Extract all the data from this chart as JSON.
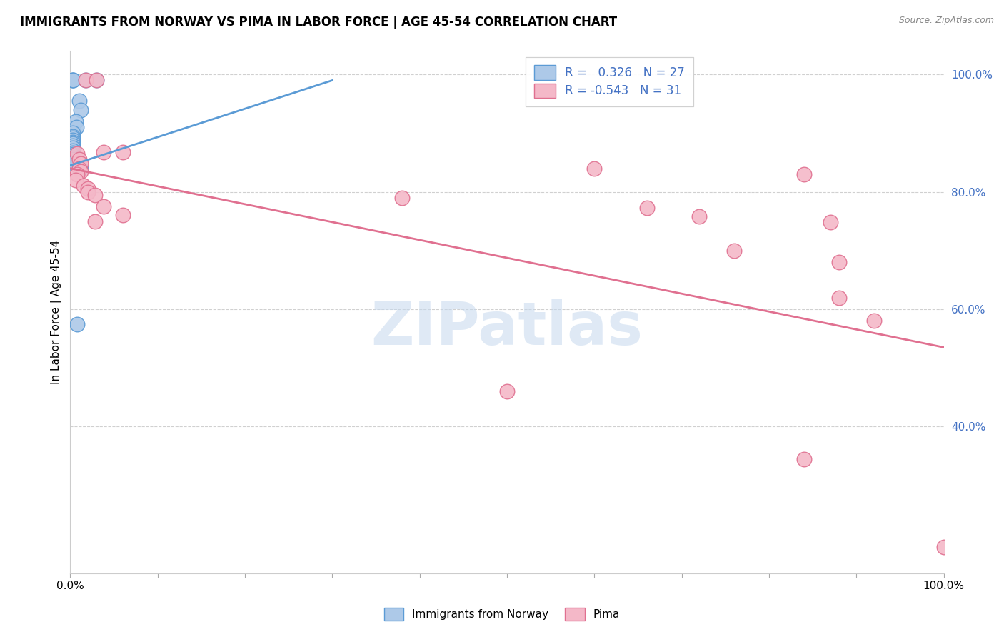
{
  "title": "IMMIGRANTS FROM NORWAY VS PIMA IN LABOR FORCE | AGE 45-54 CORRELATION CHART",
  "source": "Source: ZipAtlas.com",
  "ylabel": "In Labor Force | Age 45-54",
  "norway_R": 0.326,
  "norway_N": 27,
  "pima_R": -0.543,
  "pima_N": 31,
  "norway_color": "#adc9e8",
  "norway_edge_color": "#5b9bd5",
  "pima_color": "#f4b8c8",
  "pima_edge_color": "#e07090",
  "watermark": "ZIPatlas",
  "norway_points": [
    [
      0.003,
      0.99
    ],
    [
      0.003,
      0.99
    ],
    [
      0.003,
      0.99
    ],
    [
      0.018,
      0.99
    ],
    [
      0.03,
      0.99
    ],
    [
      0.01,
      0.955
    ],
    [
      0.012,
      0.94
    ],
    [
      0.006,
      0.92
    ],
    [
      0.007,
      0.91
    ],
    [
      0.003,
      0.9
    ],
    [
      0.003,
      0.895
    ],
    [
      0.003,
      0.892
    ],
    [
      0.003,
      0.888
    ],
    [
      0.003,
      0.885
    ],
    [
      0.003,
      0.882
    ],
    [
      0.003,
      0.878
    ],
    [
      0.003,
      0.875
    ],
    [
      0.003,
      0.87
    ],
    [
      0.003,
      0.867
    ],
    [
      0.003,
      0.864
    ],
    [
      0.003,
      0.862
    ],
    [
      0.003,
      0.858
    ],
    [
      0.003,
      0.855
    ],
    [
      0.003,
      0.85
    ],
    [
      0.01,
      0.84
    ],
    [
      0.012,
      0.84
    ],
    [
      0.008,
      0.575
    ]
  ],
  "pima_points": [
    [
      0.018,
      0.99
    ],
    [
      0.03,
      0.99
    ],
    [
      0.038,
      0.868
    ],
    [
      0.06,
      0.868
    ],
    [
      0.008,
      0.865
    ],
    [
      0.01,
      0.855
    ],
    [
      0.012,
      0.848
    ],
    [
      0.01,
      0.84
    ],
    [
      0.012,
      0.835
    ],
    [
      0.008,
      0.83
    ],
    [
      0.006,
      0.82
    ],
    [
      0.015,
      0.81
    ],
    [
      0.02,
      0.805
    ],
    [
      0.02,
      0.8
    ],
    [
      0.028,
      0.795
    ],
    [
      0.038,
      0.775
    ],
    [
      0.06,
      0.76
    ],
    [
      0.028,
      0.75
    ],
    [
      0.38,
      0.79
    ],
    [
      0.6,
      0.84
    ],
    [
      0.66,
      0.773
    ],
    [
      0.72,
      0.758
    ],
    [
      0.76,
      0.7
    ],
    [
      0.84,
      0.83
    ],
    [
      0.87,
      0.748
    ],
    [
      0.88,
      0.68
    ],
    [
      0.88,
      0.62
    ],
    [
      0.92,
      0.58
    ],
    [
      0.5,
      0.46
    ],
    [
      0.84,
      0.345
    ],
    [
      1.0,
      0.195
    ]
  ],
  "norway_trendline_x": [
    0.0,
    0.3
  ],
  "norway_trendline_y": [
    0.845,
    0.99
  ],
  "pima_trendline_x": [
    0.0,
    1.0
  ],
  "pima_trendline_y": [
    0.84,
    0.535
  ],
  "xlim": [
    0.0,
    1.0
  ],
  "ylim": [
    0.15,
    1.04
  ],
  "right_yticks": [
    1.0,
    0.8,
    0.6,
    0.4
  ],
  "right_yticklabels": [
    "100.0%",
    "80.0%",
    "60.0%",
    "40.0%"
  ]
}
